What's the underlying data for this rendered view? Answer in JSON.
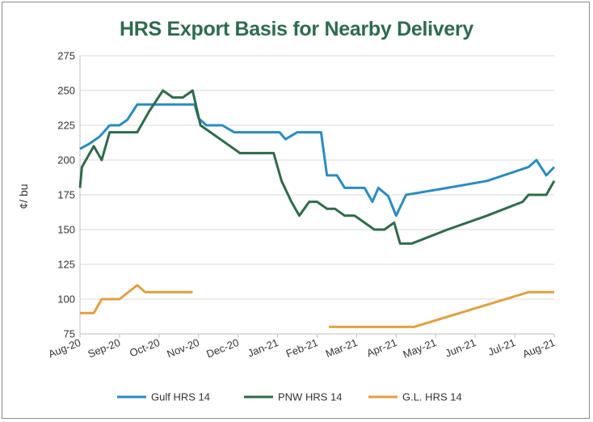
{
  "chart_data": {
    "type": "line",
    "title": "HRS Export Basis for Nearby Delivery",
    "ylabel": "¢/ bu",
    "xlabel": "",
    "ylim": [
      75,
      275
    ],
    "yticks": [
      75,
      100,
      125,
      150,
      175,
      200,
      225,
      250,
      275
    ],
    "xlim": [
      0,
      12
    ],
    "x_tick_positions": [
      0,
      1,
      2,
      3,
      4,
      5,
      6,
      7,
      8,
      9,
      10,
      11,
      12
    ],
    "x_tick_labels": [
      "Aug-20",
      "Sep-20",
      "Oct-20",
      "Nov-20",
      "Dec-20",
      "Jan-21",
      "Feb-21",
      "Mar-21",
      "Apr-21",
      "May-21",
      "Jun-21",
      "Jul-21",
      "Aug-21"
    ],
    "grid": {
      "horizontal": true,
      "vertical": false
    },
    "legend_position": "bottom",
    "series": [
      {
        "name": "Gulf HRS 14",
        "color": "#2a8cbf",
        "points": [
          [
            0,
            208
          ],
          [
            0.25,
            212
          ],
          [
            0.5,
            217
          ],
          [
            0.75,
            225
          ],
          [
            1,
            225
          ],
          [
            1.2,
            229
          ],
          [
            1.45,
            240
          ],
          [
            1.8,
            240
          ],
          [
            2.15,
            240
          ],
          [
            2.5,
            240
          ],
          [
            2.9,
            240
          ],
          [
            3.0,
            230
          ],
          [
            3.2,
            225
          ],
          [
            3.6,
            225
          ],
          [
            3.9,
            220
          ],
          [
            4.3,
            220
          ],
          [
            4.7,
            220
          ],
          [
            5.05,
            220
          ],
          [
            5.2,
            215
          ],
          [
            5.5,
            220
          ],
          [
            5.8,
            220
          ],
          [
            6.1,
            220
          ],
          [
            6.25,
            189
          ],
          [
            6.5,
            189
          ],
          [
            6.7,
            180
          ],
          [
            7.0,
            180
          ],
          [
            7.2,
            180
          ],
          [
            7.4,
            170
          ],
          [
            7.55,
            180
          ],
          [
            7.8,
            174
          ],
          [
            8.0,
            160
          ],
          [
            8.25,
            175
          ],
          [
            9.3,
            180
          ],
          [
            10.3,
            185
          ],
          [
            11.35,
            195
          ],
          [
            11.55,
            200
          ],
          [
            11.8,
            189
          ],
          [
            12,
            195
          ]
        ]
      },
      {
        "name": "PNW HRS 14",
        "color": "#2f6b4a",
        "points": [
          [
            0,
            180
          ],
          [
            0.05,
            195
          ],
          [
            0.35,
            210
          ],
          [
            0.55,
            200
          ],
          [
            0.75,
            220
          ],
          [
            1.1,
            220
          ],
          [
            1.45,
            220
          ],
          [
            1.75,
            235
          ],
          [
            2.1,
            250
          ],
          [
            2.35,
            245
          ],
          [
            2.6,
            245
          ],
          [
            2.85,
            250
          ],
          [
            3.05,
            225
          ],
          [
            3.4,
            218
          ],
          [
            3.8,
            210
          ],
          [
            4.05,
            205
          ],
          [
            4.5,
            205
          ],
          [
            4.9,
            205
          ],
          [
            5.1,
            185
          ],
          [
            5.35,
            170
          ],
          [
            5.55,
            160
          ],
          [
            5.8,
            170
          ],
          [
            6.0,
            170
          ],
          [
            6.25,
            165
          ],
          [
            6.45,
            165
          ],
          [
            6.7,
            160
          ],
          [
            6.95,
            160
          ],
          [
            7.2,
            155
          ],
          [
            7.45,
            150
          ],
          [
            7.7,
            150
          ],
          [
            7.95,
            155
          ],
          [
            8.1,
            140
          ],
          [
            8.4,
            140
          ],
          [
            9.3,
            150
          ],
          [
            10.3,
            160
          ],
          [
            11.2,
            170
          ],
          [
            11.35,
            175
          ],
          [
            11.8,
            175
          ],
          [
            12,
            185
          ]
        ]
      },
      {
        "name": "G.L. HRS 14",
        "color": "#e0a040",
        "segments": [
          [
            [
              0,
              90
            ],
            [
              0.35,
              90
            ],
            [
              0.55,
              100
            ],
            [
              1.0,
              100
            ],
            [
              1.45,
              110
            ],
            [
              1.65,
              105
            ],
            [
              2.0,
              105
            ],
            [
              2.4,
              105
            ],
            [
              2.85,
              105
            ]
          ],
          [
            [
              6.3,
              80
            ],
            [
              7.0,
              80
            ],
            [
              7.6,
              80
            ],
            [
              8.0,
              80
            ],
            [
              8.45,
              80
            ],
            [
              11.35,
              105
            ],
            [
              12,
              105
            ]
          ]
        ]
      }
    ]
  }
}
